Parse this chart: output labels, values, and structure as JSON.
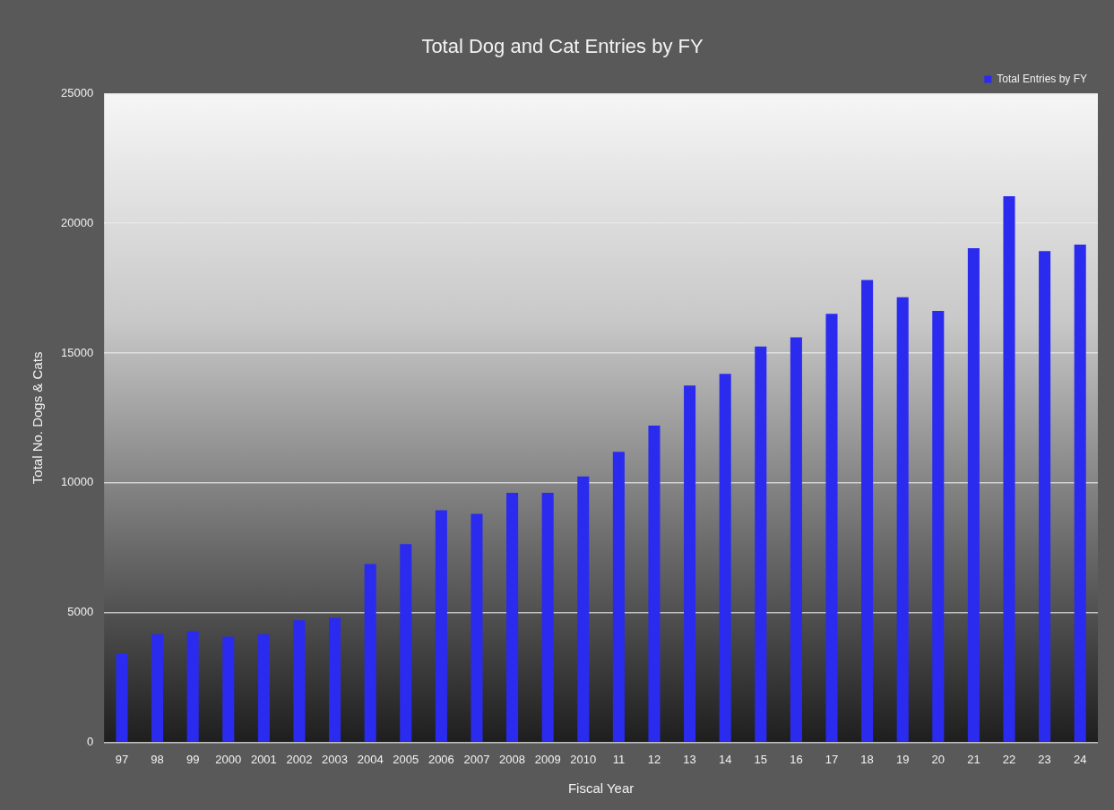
{
  "chart_data": {
    "type": "bar",
    "title": "Total Dog and Cat Entries by FY",
    "xlabel": "Fiscal Year",
    "ylabel": "Total No. Dogs & Cats",
    "categories": [
      "97",
      "98",
      "99",
      "2000",
      "2001",
      "2002",
      "2003",
      "2004",
      "2005",
      "2006",
      "2007",
      "2008",
      "2009",
      "2010",
      "11",
      "12",
      "13",
      "14",
      "15",
      "16",
      "17",
      "18",
      "19",
      "20",
      "21",
      "22",
      "23",
      "24"
    ],
    "series": [
      {
        "name": "Total Entries by FY",
        "color": "#2b2bef",
        "values": [
          3400,
          4170,
          4280,
          4070,
          4170,
          4700,
          4800,
          6870,
          7640,
          8940,
          8800,
          9610,
          9610,
          10240,
          11190,
          12200,
          13750,
          14200,
          15250,
          15600,
          16510,
          17810,
          17150,
          16620,
          19040,
          21040,
          18930,
          19180
        ]
      }
    ],
    "ylim": [
      0,
      25000
    ],
    "yticks": [
      0,
      5000,
      10000,
      15000,
      20000,
      25000
    ],
    "grid": "y",
    "legend": "top right"
  }
}
